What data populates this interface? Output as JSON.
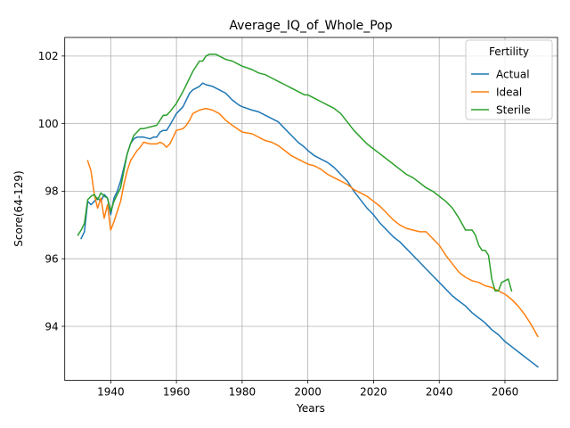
{
  "chart_data": {
    "type": "line",
    "title": "Average_IQ_of_Whole_Pop",
    "xlabel": "Years",
    "ylabel": "Score(64-129)",
    "xlim": [
      1926,
      2076
    ],
    "ylim": [
      92.4,
      102.55
    ],
    "xticks": [
      1940,
      1960,
      1980,
      2000,
      2020,
      2040,
      2060
    ],
    "yticks": [
      94,
      96,
      98,
      100,
      102
    ],
    "grid": true,
    "legend": {
      "title": "Fertility",
      "placement": "top-right"
    },
    "series": [
      {
        "name": "Actual",
        "color": "#1f77b4",
        "x": [
          1931,
          1932,
          1933,
          1934,
          1935,
          1936,
          1937,
          1938,
          1939,
          1940,
          1941,
          1942,
          1943,
          1944,
          1945,
          1946,
          1947,
          1948,
          1950,
          1952,
          1953,
          1954,
          1955,
          1956,
          1957,
          1958,
          1960,
          1962,
          1964,
          1965,
          1967,
          1968,
          1969,
          1971,
          1973,
          1975,
          1977,
          1979,
          1980,
          1983,
          1985,
          1987,
          1989,
          1991,
          1993,
          1995,
          1997,
          1999,
          2000,
          2002,
          2004,
          2006,
          2008,
          2010,
          2012,
          2014,
          2016,
          2018,
          2020,
          2022,
          2024,
          2026,
          2028,
          2030,
          2032,
          2034,
          2036,
          2038,
          2040,
          2042,
          2044,
          2046,
          2048,
          2050,
          2052,
          2054,
          2056,
          2058,
          2060,
          2062,
          2064,
          2066,
          2068,
          2070
        ],
        "y": [
          96.6,
          96.8,
          97.7,
          97.6,
          97.7,
          97.8,
          97.7,
          97.9,
          97.8,
          97.3,
          97.8,
          98.0,
          98.3,
          98.7,
          99.1,
          99.4,
          99.55,
          99.6,
          99.6,
          99.55,
          99.6,
          99.6,
          99.75,
          99.8,
          99.8,
          99.95,
          100.3,
          100.5,
          100.9,
          101.0,
          101.1,
          101.2,
          101.15,
          101.1,
          101.0,
          100.9,
          100.7,
          100.55,
          100.5,
          100.4,
          100.35,
          100.25,
          100.15,
          100.05,
          99.85,
          99.65,
          99.45,
          99.3,
          99.2,
          99.05,
          98.95,
          98.85,
          98.7,
          98.5,
          98.3,
          98.0,
          97.75,
          97.5,
          97.3,
          97.05,
          96.85,
          96.65,
          96.5,
          96.3,
          96.1,
          95.9,
          95.7,
          95.5,
          95.3,
          95.1,
          94.9,
          94.75,
          94.6,
          94.4,
          94.25,
          94.1,
          93.9,
          93.75,
          93.55,
          93.4,
          93.25,
          93.1,
          92.95,
          92.8
        ]
      },
      {
        "name": "Ideal",
        "color": "#ff7f0e",
        "x": [
          1933,
          1934,
          1935,
          1936,
          1937,
          1938,
          1939,
          1940,
          1941,
          1942,
          1943,
          1944,
          1945,
          1946,
          1948,
          1949,
          1950,
          1952,
          1954,
          1955,
          1956,
          1957,
          1958,
          1960,
          1962,
          1963,
          1964,
          1965,
          1967,
          1969,
          1971,
          1973,
          1975,
          1977,
          1980,
          1983,
          1985,
          1987,
          1989,
          1991,
          1993,
          1995,
          1997,
          1999,
          2000,
          2002,
          2004,
          2006,
          2008,
          2010,
          2012,
          2014,
          2016,
          2018,
          2020,
          2022,
          2024,
          2026,
          2028,
          2030,
          2032,
          2034,
          2036,
          2038,
          2040,
          2042,
          2044,
          2046,
          2048,
          2050,
          2052,
          2054,
          2056,
          2058,
          2060,
          2062,
          2064,
          2066,
          2068,
          2070
        ],
        "y": [
          98.9,
          98.6,
          97.9,
          97.5,
          97.8,
          97.2,
          97.6,
          96.85,
          97.1,
          97.4,
          97.7,
          98.2,
          98.6,
          98.9,
          99.2,
          99.3,
          99.45,
          99.4,
          99.4,
          99.45,
          99.4,
          99.3,
          99.4,
          99.8,
          99.85,
          99.95,
          100.1,
          100.3,
          100.4,
          100.45,
          100.4,
          100.3,
          100.1,
          99.95,
          99.75,
          99.7,
          99.6,
          99.5,
          99.45,
          99.35,
          99.2,
          99.05,
          98.95,
          98.85,
          98.8,
          98.75,
          98.65,
          98.5,
          98.4,
          98.3,
          98.2,
          98.05,
          97.95,
          97.85,
          97.7,
          97.55,
          97.35,
          97.15,
          97.0,
          96.9,
          96.85,
          96.8,
          96.8,
          96.6,
          96.4,
          96.1,
          95.85,
          95.6,
          95.45,
          95.35,
          95.3,
          95.2,
          95.15,
          95.05,
          94.95,
          94.8,
          94.6,
          94.35,
          94.05,
          93.7
        ]
      },
      {
        "name": "Sterile",
        "color": "#2ca02c",
        "x": [
          1930,
          1931,
          1932,
          1933,
          1934,
          1935,
          1936,
          1937,
          1938,
          1939,
          1940,
          1941,
          1942,
          1943,
          1944,
          1945,
          1946,
          1947,
          1948,
          1949,
          1950,
          1952,
          1954,
          1955,
          1956,
          1957,
          1958,
          1960,
          1962,
          1964,
          1965,
          1967,
          1968,
          1969,
          1970,
          1972,
          1973,
          1975,
          1977,
          1979,
          1980,
          1983,
          1985,
          1987,
          1989,
          1991,
          1993,
          1995,
          1997,
          1999,
          2000,
          2002,
          2004,
          2006,
          2008,
          2010,
          2012,
          2014,
          2016,
          2018,
          2020,
          2022,
          2024,
          2026,
          2028,
          2030,
          2032,
          2034,
          2036,
          2038,
          2040,
          2042,
          2044,
          2046,
          2048,
          2050,
          2051,
          2052,
          2053,
          2054,
          2055,
          2056,
          2057,
          2058,
          2059,
          2060,
          2061,
          2062
        ],
        "y": [
          96.7,
          96.85,
          97.05,
          97.75,
          97.85,
          97.9,
          97.75,
          97.95,
          97.85,
          97.8,
          97.4,
          97.7,
          97.9,
          98.1,
          98.6,
          99.1,
          99.4,
          99.65,
          99.75,
          99.85,
          99.85,
          99.9,
          99.95,
          100.1,
          100.25,
          100.25,
          100.35,
          100.6,
          100.95,
          101.35,
          101.55,
          101.85,
          101.85,
          102.0,
          102.05,
          102.05,
          102.0,
          101.9,
          101.85,
          101.75,
          101.7,
          101.6,
          101.5,
          101.45,
          101.35,
          101.25,
          101.15,
          101.05,
          100.95,
          100.85,
          100.85,
          100.75,
          100.65,
          100.55,
          100.45,
          100.3,
          100.05,
          99.8,
          99.6,
          99.4,
          99.25,
          99.1,
          98.95,
          98.8,
          98.65,
          98.5,
          98.4,
          98.25,
          98.1,
          98.0,
          97.85,
          97.7,
          97.5,
          97.2,
          96.85,
          96.85,
          96.7,
          96.4,
          96.25,
          96.25,
          96.1,
          95.4,
          95.05,
          95.05,
          95.3,
          95.35,
          95.4,
          95.05
        ]
      }
    ]
  }
}
